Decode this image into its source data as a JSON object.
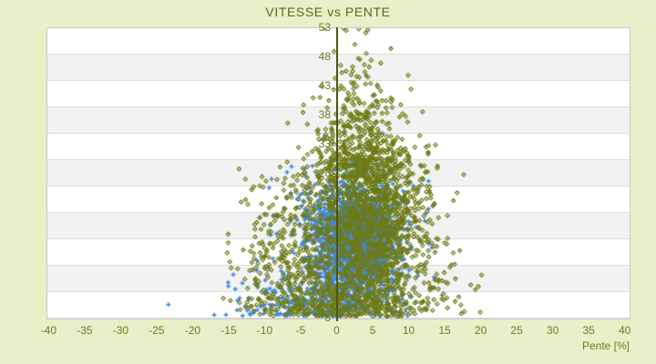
{
  "title": "VITESSE vs PENTE",
  "colors": {
    "page_bg": "#e9efc8",
    "title_color": "#5a681f",
    "tick_color": "#6e7a22",
    "axis_line_color": "#4d5414",
    "band_a": "#ffffff",
    "band_b": "#f2f2f2",
    "grid_color": "#dedede",
    "border_color": "#c9c9c9",
    "olive_series": "#6e7b17",
    "blue_series": "#3f88e4"
  },
  "chart_data": {
    "type": "scatter",
    "title": "VITESSE vs PENTE",
    "xlabel": "Pente [%]",
    "ylabel": "",
    "x_ticks": [
      -40,
      -35,
      -30,
      -25,
      -20,
      -15,
      -10,
      -5,
      0,
      5,
      10,
      15,
      20,
      25,
      30,
      35,
      40
    ],
    "y_ticks": [
      53,
      48,
      43,
      38,
      33,
      28,
      23,
      18,
      13,
      8,
      3
    ],
    "xlim": [
      -40.3,
      40.55
    ],
    "ylim": [
      3,
      53
    ],
    "grid": "horizontal-bands",
    "legend": "none",
    "axis_line_at_x": 0,
    "background_bands": {
      "count": 11,
      "alternating": [
        "#ffffff",
        "#f2f2f2"
      ],
      "gridline_color": "#dedede"
    },
    "seed": 20240613,
    "series": [
      {
        "id": "blue-series",
        "marker": "plus",
        "color": "#3f88e4",
        "count": 2400,
        "clusters": [
          {
            "kind": "normal",
            "weight": 0.62,
            "x_mean": 2.6,
            "x_sd": 2.5,
            "y_mean": 17,
            "y_sd": 4.6,
            "x_clip": [
              -5,
              11.5
            ],
            "y_clip": [
              4.5,
              31
            ]
          },
          {
            "kind": "normal",
            "weight": 0.27,
            "x_mean": 1.5,
            "x_sd": 4.2,
            "y_mean": 15,
            "y_sd": 6.5,
            "x_clip": [
              -11,
              13.5
            ],
            "y_clip": [
              3.3,
              36.5
            ]
          },
          {
            "kind": "skirt",
            "weight": 0.11,
            "y_base": 3.3,
            "y_sd": 3.5,
            "x_mean": -3,
            "x_sd": 5.5,
            "x_clip": [
              -18,
              10
            ],
            "y_clip": [
              3.2,
              14
            ]
          }
        ],
        "extra_points": [
          [
            -23.5,
            5.4
          ],
          [
            -15.2,
            9.2
          ],
          [
            -11.2,
            13
          ],
          [
            12.8,
            8.2
          ],
          [
            13.4,
            10.1
          ],
          [
            -9.5,
            25.5
          ],
          [
            -1.8,
            34.5
          ],
          [
            14.5,
            7
          ],
          [
            -13.9,
            6.1
          ],
          [
            12.2,
            21
          ],
          [
            -10.8,
            20.4
          ],
          [
            13.1,
            15.2
          ]
        ]
      },
      {
        "id": "olive-series",
        "marker": "diamond",
        "color": "#6e7b17",
        "count": 2600,
        "clusters": [
          {
            "kind": "normal",
            "weight": 0.5,
            "x_mean": 4.5,
            "x_sd": 4.0,
            "y_mean": 20,
            "y_sd": 6.5,
            "x_clip": [
              -14,
              19
            ],
            "y_clip": [
              4,
              36
            ]
          },
          {
            "kind": "spike",
            "weight": 0.17,
            "y_base": 27,
            "y_sd": 8,
            "y_max": 53,
            "x_mean": 3.2,
            "x_sd_min": 1.0,
            "x_sd_max": 4.2,
            "x_clip": [
              -8,
              14
            ],
            "y_clip": [
              27,
              53
            ]
          },
          {
            "kind": "skirt",
            "weight": 0.24,
            "y_base": 3.3,
            "y_sd": 5.5,
            "x_mean": 1.5,
            "x_sd": 7.2,
            "x_clip": [
              -16,
              20
            ],
            "y_clip": [
              3.2,
              18
            ]
          },
          {
            "kind": "normal",
            "weight": 0.09,
            "x_mean": -6,
            "x_sd": 4,
            "y_mean": 16,
            "y_sd": 6,
            "x_clip": [
              -15.5,
              0
            ],
            "y_clip": [
              4,
              30
            ]
          }
        ],
        "extra_points": [
          [
            20,
            10.5
          ],
          [
            18.5,
            8.8
          ],
          [
            15.8,
            12.2
          ],
          [
            14.5,
            9.5
          ],
          [
            -12.8,
            27
          ],
          [
            10.2,
            42.5
          ],
          [
            6.0,
            47
          ],
          [
            1.2,
            52.6
          ],
          [
            2.4,
            50.2
          ],
          [
            -0.5,
            49
          ],
          [
            0.8,
            53
          ],
          [
            4,
            44.8
          ],
          [
            -2.2,
            43
          ],
          [
            -1.8,
            53
          ],
          [
            3.9,
            52.2
          ],
          [
            9.8,
            44.9
          ],
          [
            7.4,
            49.5
          ],
          [
            -4.8,
            38.5
          ],
          [
            2.1,
            45.6
          ],
          [
            5.5,
            43.2
          ],
          [
            -3.4,
            41
          ],
          [
            11.8,
            38.6
          ]
        ]
      }
    ]
  }
}
